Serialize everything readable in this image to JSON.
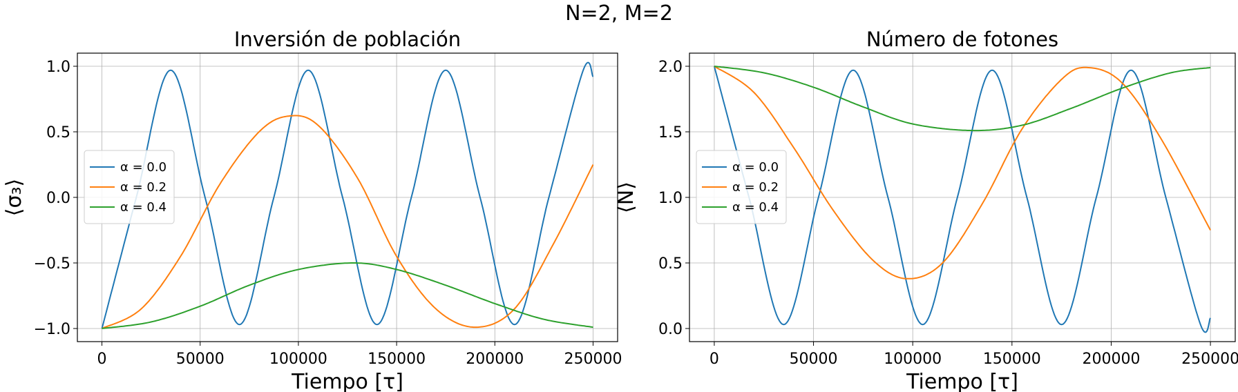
{
  "figure": {
    "suptitle": "N=2, M=2"
  },
  "chart_data": [
    {
      "type": "line",
      "title": "Inversión de población",
      "xlabel": "Tiempo [τ]",
      "ylabel": "⟨σ₃⟩",
      "xlim": [
        -12500,
        262500
      ],
      "ylim": [
        -1.1,
        1.1
      ],
      "xticks": [
        0,
        50000,
        100000,
        150000,
        200000,
        250000
      ],
      "xtick_labels": [
        "0",
        "50000",
        "100000",
        "150000",
        "200000",
        "250000"
      ],
      "yticks": [
        -1.0,
        -0.5,
        0.0,
        0.5,
        1.0
      ],
      "ytick_labels": [
        "−1.0",
        "−0.5",
        "0.0",
        "0.5",
        "1.0"
      ],
      "grid": true,
      "legend_position": "center-left",
      "series": [
        {
          "name": "α = 0.0",
          "color": "#1f77b4",
          "x": [
            0,
            17500,
            35000,
            52500,
            70000,
            87500,
            105000,
            122500,
            140000,
            157500,
            175000,
            192500,
            210000,
            227500,
            245000,
            250000
          ],
          "y": [
            -1.0,
            0.0,
            0.97,
            0.0,
            -0.97,
            0.0,
            0.97,
            0.0,
            -0.97,
            0.0,
            0.97,
            0.0,
            -0.97,
            0.0,
            0.97,
            0.92
          ]
        },
        {
          "name": "α = 0.2",
          "color": "#ff7f0e",
          "x": [
            0,
            20000,
            40000,
            60000,
            80000,
            95000,
            110000,
            130000,
            150000,
            170000,
            190000,
            210000,
            230000,
            250000
          ],
          "y": [
            -1.0,
            -0.85,
            -0.45,
            0.1,
            0.5,
            0.62,
            0.55,
            0.15,
            -0.45,
            -0.85,
            -0.99,
            -0.85,
            -0.35,
            0.25
          ]
        },
        {
          "name": "α = 0.4",
          "color": "#2ca02c",
          "x": [
            0,
            25000,
            50000,
            75000,
            100000,
            128000,
            150000,
            175000,
            200000,
            225000,
            250000
          ],
          "y": [
            -1.0,
            -0.95,
            -0.83,
            -0.67,
            -0.55,
            -0.5,
            -0.55,
            -0.67,
            -0.81,
            -0.93,
            -0.99
          ]
        }
      ]
    },
    {
      "type": "line",
      "title": "Número de  fotones",
      "xlabel": "Tiempo [τ]",
      "ylabel": "⟨N⟩",
      "xlim": [
        -12500,
        262500
      ],
      "ylim": [
        -0.1,
        2.1
      ],
      "xticks": [
        0,
        50000,
        100000,
        150000,
        200000,
        250000
      ],
      "xtick_labels": [
        "0",
        "50000",
        "100000",
        "150000",
        "200000",
        "250000"
      ],
      "yticks": [
        0.0,
        0.5,
        1.0,
        1.5,
        2.0
      ],
      "ytick_labels": [
        "0.0",
        "0.5",
        "1.0",
        "1.5",
        "2.0"
      ],
      "grid": true,
      "legend_position": "center-left",
      "series": [
        {
          "name": "α = 0.0",
          "color": "#1f77b4",
          "x": [
            0,
            17500,
            35000,
            52500,
            70000,
            87500,
            105000,
            122500,
            140000,
            157500,
            175000,
            192500,
            210000,
            227500,
            245000,
            250000
          ],
          "y": [
            2.0,
            1.0,
            0.03,
            1.0,
            1.97,
            1.0,
            0.03,
            1.0,
            1.97,
            1.0,
            0.03,
            1.0,
            1.97,
            1.0,
            0.03,
            0.08
          ]
        },
        {
          "name": "α = 0.2",
          "color": "#ff7f0e",
          "x": [
            0,
            20000,
            40000,
            60000,
            80000,
            97000,
            115000,
            135000,
            155000,
            175000,
            188000,
            205000,
            225000,
            250000
          ],
          "y": [
            2.0,
            1.8,
            1.38,
            0.9,
            0.52,
            0.38,
            0.5,
            0.95,
            1.52,
            1.9,
            1.99,
            1.88,
            1.45,
            0.75
          ]
        },
        {
          "name": "α = 0.4",
          "color": "#2ca02c",
          "x": [
            0,
            25000,
            50000,
            75000,
            100000,
            130000,
            155000,
            180000,
            205000,
            230000,
            250000
          ],
          "y": [
            2.0,
            1.95,
            1.84,
            1.69,
            1.56,
            1.51,
            1.55,
            1.68,
            1.83,
            1.95,
            1.99
          ]
        }
      ]
    }
  ]
}
